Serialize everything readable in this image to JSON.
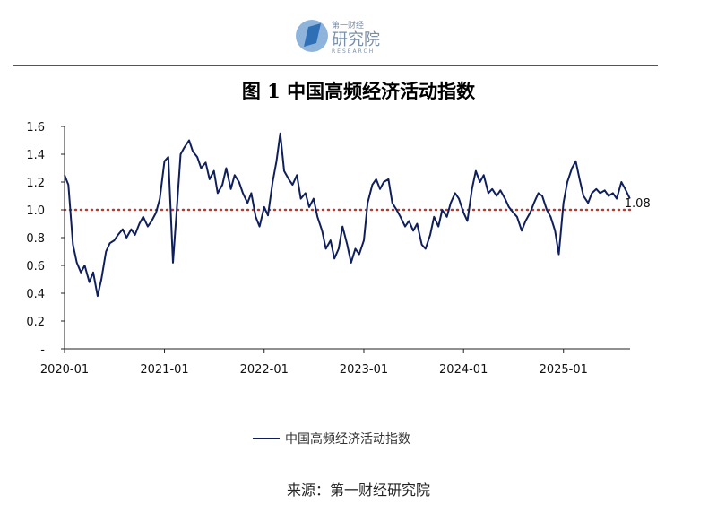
{
  "logo": {
    "top_text": "第一财经",
    "main_text": "研究院",
    "sub_text": "RESEARCH",
    "colors": {
      "primary": "#2f6fb5",
      "light": "#8fb4dc",
      "text": "#7a8fa8"
    }
  },
  "chart_data": {
    "type": "line",
    "title": "图 1  中国高频经济活动指数",
    "xlabel": "",
    "ylabel": "",
    "x_tick_labels": [
      "2020-01",
      "2021-01",
      "2022-01",
      "2023-01",
      "2024-01",
      "2025-01"
    ],
    "y_tick_labels": [
      "-",
      "0.2",
      "0.4",
      "0.6",
      "0.8",
      "1.0",
      "1.2",
      "1.4",
      "1.6"
    ],
    "ylim": [
      0,
      1.6
    ],
    "xlim": [
      "2020-01",
      "2025-09"
    ],
    "grid": false,
    "legend_position": "bottom",
    "colors": {
      "series": "#0f1f5c",
      "reference": "#c0392b",
      "axis": "#222222"
    },
    "reference_line": {
      "value": 1.0,
      "style": "dotted"
    },
    "last_value_label": "1.08",
    "series": [
      {
        "name": "中国高频经济活动指数",
        "points": [
          [
            "2020-01",
            1.25
          ],
          [
            "2020-01-15",
            1.18
          ],
          [
            "2020-02",
            0.75
          ],
          [
            "2020-02-15",
            0.62
          ],
          [
            "2020-03",
            0.55
          ],
          [
            "2020-03-15",
            0.6
          ],
          [
            "2020-04",
            0.48
          ],
          [
            "2020-04-15",
            0.55
          ],
          [
            "2020-05",
            0.38
          ],
          [
            "2020-05-15",
            0.5
          ],
          [
            "2020-06",
            0.7
          ],
          [
            "2020-06-15",
            0.76
          ],
          [
            "2020-07",
            0.78
          ],
          [
            "2020-07-15",
            0.82
          ],
          [
            "2020-08",
            0.86
          ],
          [
            "2020-08-15",
            0.8
          ],
          [
            "2020-09",
            0.86
          ],
          [
            "2020-09-15",
            0.82
          ],
          [
            "2020-10",
            0.9
          ],
          [
            "2020-10-15",
            0.95
          ],
          [
            "2020-11",
            0.88
          ],
          [
            "2020-11-15",
            0.92
          ],
          [
            "2020-12",
            0.98
          ],
          [
            "2020-12-15",
            1.08
          ],
          [
            "2021-01",
            1.35
          ],
          [
            "2021-01-15",
            1.38
          ],
          [
            "2021-02",
            0.62
          ],
          [
            "2021-02-15",
            1.0
          ],
          [
            "2021-03",
            1.4
          ],
          [
            "2021-03-15",
            1.45
          ],
          [
            "2021-04",
            1.5
          ],
          [
            "2021-04-15",
            1.42
          ],
          [
            "2021-05",
            1.38
          ],
          [
            "2021-05-15",
            1.3
          ],
          [
            "2021-06",
            1.34
          ],
          [
            "2021-06-15",
            1.22
          ],
          [
            "2021-07",
            1.28
          ],
          [
            "2021-07-15",
            1.12
          ],
          [
            "2021-08",
            1.18
          ],
          [
            "2021-08-15",
            1.3
          ],
          [
            "2021-09",
            1.15
          ],
          [
            "2021-09-15",
            1.25
          ],
          [
            "2021-10",
            1.2
          ],
          [
            "2021-10-15",
            1.12
          ],
          [
            "2021-11",
            1.05
          ],
          [
            "2021-11-15",
            1.12
          ],
          [
            "2021-12",
            0.95
          ],
          [
            "2021-12-15",
            0.88
          ],
          [
            "2022-01",
            1.02
          ],
          [
            "2022-01-15",
            0.96
          ],
          [
            "2022-02",
            1.2
          ],
          [
            "2022-02-15",
            1.35
          ],
          [
            "2022-03",
            1.55
          ],
          [
            "2022-03-15",
            1.28
          ],
          [
            "2022-04",
            1.22
          ],
          [
            "2022-04-15",
            1.18
          ],
          [
            "2022-05",
            1.25
          ],
          [
            "2022-05-15",
            1.08
          ],
          [
            "2022-06",
            1.12
          ],
          [
            "2022-06-15",
            1.02
          ],
          [
            "2022-07",
            1.08
          ],
          [
            "2022-07-15",
            0.95
          ],
          [
            "2022-08",
            0.85
          ],
          [
            "2022-08-15",
            0.72
          ],
          [
            "2022-09",
            0.78
          ],
          [
            "2022-09-15",
            0.65
          ],
          [
            "2022-10",
            0.72
          ],
          [
            "2022-10-15",
            0.88
          ],
          [
            "2022-11",
            0.75
          ],
          [
            "2022-11-15",
            0.62
          ],
          [
            "2022-12",
            0.72
          ],
          [
            "2022-12-15",
            0.68
          ],
          [
            "2023-01",
            0.78
          ],
          [
            "2023-01-15",
            1.05
          ],
          [
            "2023-02",
            1.18
          ],
          [
            "2023-02-15",
            1.22
          ],
          [
            "2023-03",
            1.15
          ],
          [
            "2023-03-15",
            1.2
          ],
          [
            "2023-04",
            1.22
          ],
          [
            "2023-04-15",
            1.05
          ],
          [
            "2023-05",
            1.0
          ],
          [
            "2023-05-15",
            0.95
          ],
          [
            "2023-06",
            0.88
          ],
          [
            "2023-06-15",
            0.92
          ],
          [
            "2023-07",
            0.85
          ],
          [
            "2023-07-15",
            0.9
          ],
          [
            "2023-08",
            0.75
          ],
          [
            "2023-08-15",
            0.72
          ],
          [
            "2023-09",
            0.82
          ],
          [
            "2023-09-15",
            0.95
          ],
          [
            "2023-10",
            0.88
          ],
          [
            "2023-10-15",
            1.0
          ],
          [
            "2023-11",
            0.95
          ],
          [
            "2023-11-15",
            1.05
          ],
          [
            "2023-12",
            1.12
          ],
          [
            "2023-12-15",
            1.08
          ],
          [
            "2024-01",
            0.98
          ],
          [
            "2024-01-15",
            0.92
          ],
          [
            "2024-02",
            1.15
          ],
          [
            "2024-02-15",
            1.28
          ],
          [
            "2024-03",
            1.2
          ],
          [
            "2024-03-15",
            1.25
          ],
          [
            "2024-04",
            1.12
          ],
          [
            "2024-04-15",
            1.15
          ],
          [
            "2024-05",
            1.1
          ],
          [
            "2024-05-15",
            1.14
          ],
          [
            "2024-06",
            1.08
          ],
          [
            "2024-06-15",
            1.02
          ],
          [
            "2024-07",
            0.98
          ],
          [
            "2024-07-15",
            0.95
          ],
          [
            "2024-08",
            0.85
          ],
          [
            "2024-08-15",
            0.92
          ],
          [
            "2024-09",
            0.98
          ],
          [
            "2024-09-15",
            1.05
          ],
          [
            "2024-10",
            1.12
          ],
          [
            "2024-10-15",
            1.1
          ],
          [
            "2024-11",
            1.0
          ],
          [
            "2024-11-15",
            0.95
          ],
          [
            "2024-12",
            0.85
          ],
          [
            "2024-12-15",
            0.68
          ],
          [
            "2025-01",
            1.05
          ],
          [
            "2025-01-15",
            1.2
          ],
          [
            "2025-02",
            1.3
          ],
          [
            "2025-02-15",
            1.35
          ],
          [
            "2025-03",
            1.22
          ],
          [
            "2025-03-15",
            1.1
          ],
          [
            "2025-04",
            1.05
          ],
          [
            "2025-04-15",
            1.12
          ],
          [
            "2025-05",
            1.15
          ],
          [
            "2025-05-15",
            1.12
          ],
          [
            "2025-06",
            1.14
          ],
          [
            "2025-06-15",
            1.1
          ],
          [
            "2025-07",
            1.12
          ],
          [
            "2025-07-15",
            1.08
          ],
          [
            "2025-08",
            1.2
          ],
          [
            "2025-08-15",
            1.15
          ],
          [
            "2025-09",
            1.08
          ]
        ]
      }
    ]
  },
  "source": "来源：第一财经研究院"
}
